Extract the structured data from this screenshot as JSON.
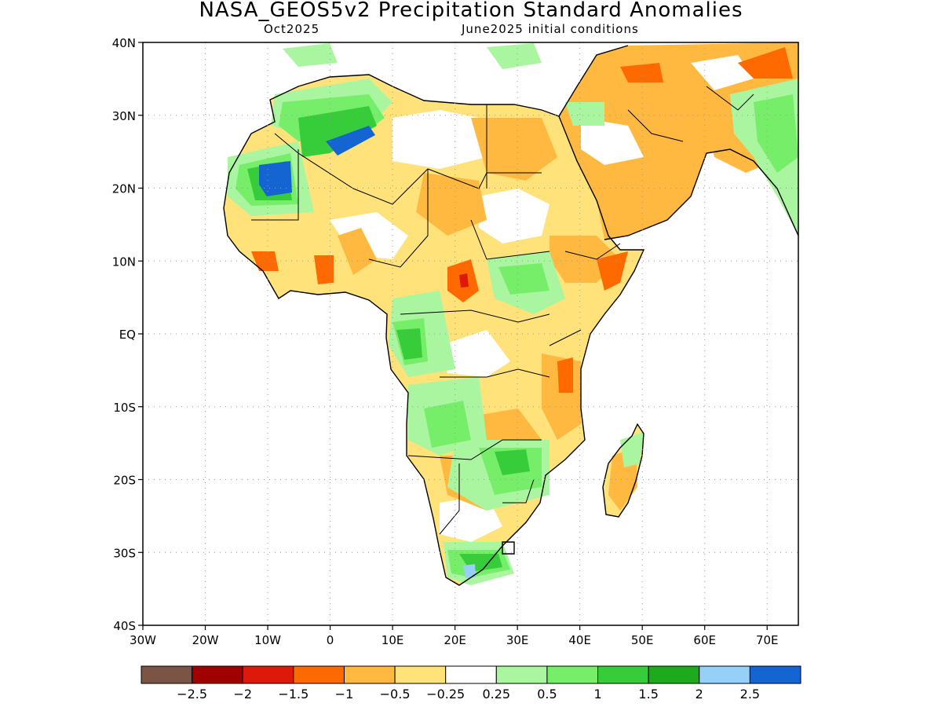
{
  "title": "NASA_GEOS5v2 Precipitation Standard Anomalies",
  "forecast_month": "Oct2025",
  "init_conditions": "June2025 initial conditions",
  "lat_ticks": [
    {
      "label": "40N",
      "lat": 40
    },
    {
      "label": "30N",
      "lat": 30
    },
    {
      "label": "20N",
      "lat": 20
    },
    {
      "label": "10N",
      "lat": 10
    },
    {
      "label": "EQ",
      "lat": 0
    },
    {
      "label": "10S",
      "lat": -10
    },
    {
      "label": "20S",
      "lat": -20
    },
    {
      "label": "30S",
      "lat": -30
    },
    {
      "label": "40S",
      "lat": -40
    }
  ],
  "lon_ticks": [
    {
      "label": "30W",
      "lon": -30
    },
    {
      "label": "20W",
      "lon": -20
    },
    {
      "label": "10W",
      "lon": -10
    },
    {
      "label": "0",
      "lon": 0
    },
    {
      "label": "10E",
      "lon": 10
    },
    {
      "label": "20E",
      "lon": 20
    },
    {
      "label": "30E",
      "lon": 30
    },
    {
      "label": "40E",
      "lon": 40
    },
    {
      "label": "50E",
      "lon": 50
    },
    {
      "label": "60E",
      "lon": 60
    },
    {
      "label": "70E",
      "lon": 70
    }
  ],
  "map_extent": {
    "lon_min": -30,
    "lon_max": 75,
    "lat_min": -40,
    "lat_max": 40
  },
  "colorbar": {
    "colors": [
      "#7a5546",
      "#a00000",
      "#dd1a0a",
      "#ff6a00",
      "#ffb940",
      "#ffe27a",
      "#ffffff",
      "#aaf5a0",
      "#76ee6a",
      "#37cd3a",
      "#1daa1d",
      "#96d0f8",
      "#1464d2"
    ],
    "labels": [
      "−2.5",
      "−2",
      "−1.5",
      "−1",
      "−0.5",
      "−0.25",
      "0.25",
      "0.5",
      "1",
      "1.5",
      "2",
      "2.5"
    ]
  }
}
